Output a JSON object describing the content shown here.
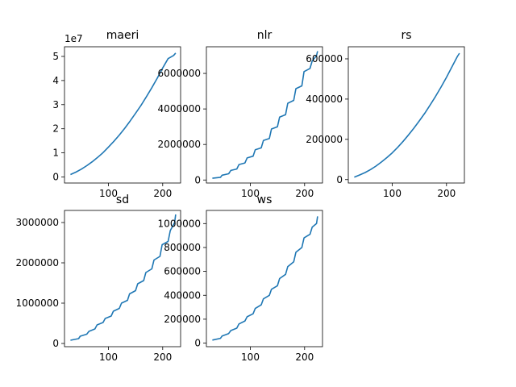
{
  "figure": {
    "background": "#ffffff",
    "line_color": "#1f77b4"
  },
  "chart_data": [
    {
      "name": "maeri",
      "type": "line",
      "title": "maeri",
      "xlim": [
        19,
        233
      ],
      "ylim": [
        -2500000,
        54000000
      ],
      "xticks": [
        100,
        200
      ],
      "xtick_labels": [
        "100",
        "200"
      ],
      "yticks": [
        0,
        10000000,
        20000000,
        30000000,
        40000000,
        50000000
      ],
      "ytick_labels": [
        "0",
        "1",
        "2",
        "3",
        "4",
        "5"
      ],
      "y_offset_label": "1e7",
      "series": [
        {
          "x": [
            30,
            40,
            50,
            60,
            70,
            80,
            90,
            100,
            110,
            120,
            130,
            140,
            150,
            160,
            170,
            180,
            190,
            200,
            210,
            220,
            224
          ],
          "y": [
            1000000,
            2000000,
            3250000,
            4700000,
            6300000,
            8100000,
            10100000,
            12400000,
            14800000,
            17400000,
            20200000,
            23200000,
            26400000,
            29700000,
            33300000,
            37000000,
            41000000,
            45200000,
            49100000,
            50400000,
            51400000
          ]
        }
      ]
    },
    {
      "name": "nlr",
      "type": "line",
      "title": "nlr",
      "xlim": [
        19,
        233
      ],
      "ylim": [
        -170000,
        7500000
      ],
      "xticks": [
        100,
        200
      ],
      "xtick_labels": [
        "100",
        "200"
      ],
      "yticks": [
        0,
        2000000,
        4000000,
        6000000
      ],
      "ytick_labels": [
        "0",
        "2000000",
        "4000000",
        "6000000"
      ],
      "series": [
        {
          "x": [
            30,
            45,
            48,
            60,
            64,
            75,
            79,
            90,
            94,
            105,
            109,
            120,
            124,
            135,
            139,
            150,
            154,
            165,
            169,
            180,
            184,
            195,
            199,
            210,
            214,
            222,
            224
          ],
          "y": [
            100000,
            150000,
            270000,
            350000,
            540000,
            620000,
            870000,
            960000,
            1240000,
            1340000,
            1700000,
            1810000,
            2220000,
            2340000,
            2870000,
            3000000,
            3540000,
            3680000,
            4320000,
            4480000,
            5140000,
            5300000,
            6100000,
            6280000,
            6700000,
            7000000,
            7250000
          ]
        }
      ]
    },
    {
      "name": "rs",
      "type": "line",
      "title": "rs",
      "xlim": [
        19,
        233
      ],
      "ylim": [
        -17000,
        660000
      ],
      "xticks": [
        100,
        200
      ],
      "xtick_labels": [
        "100",
        "200"
      ],
      "yticks": [
        0,
        200000,
        400000,
        600000
      ],
      "ytick_labels": [
        "0",
        "200000",
        "400000",
        "600000"
      ],
      "series": [
        {
          "x": [
            30,
            40,
            50,
            60,
            70,
            80,
            90,
            100,
            110,
            120,
            130,
            140,
            150,
            160,
            170,
            180,
            190,
            200,
            210,
            220,
            224
          ],
          "y": [
            12000,
            23000,
            35000,
            50000,
            67000,
            87000,
            109000,
            133000,
            160000,
            190000,
            222000,
            256000,
            292000,
            330000,
            371000,
            414000,
            460000,
            508000,
            560000,
            612000,
            628000
          ]
        }
      ]
    },
    {
      "name": "sd",
      "type": "line",
      "title": "sd",
      "xlim": [
        19,
        233
      ],
      "ylim": [
        -80000,
        3300000
      ],
      "xticks": [
        100,
        200
      ],
      "xtick_labels": [
        "100",
        "200"
      ],
      "yticks": [
        0,
        1000000,
        2000000,
        3000000
      ],
      "ytick_labels": [
        "0",
        "1000000",
        "2000000",
        "3000000"
      ],
      "series": [
        {
          "x": [
            30,
            45,
            48,
            60,
            64,
            75,
            79,
            90,
            94,
            105,
            109,
            120,
            124,
            135,
            139,
            150,
            154,
            165,
            169,
            180,
            184,
            195,
            199,
            210,
            214,
            222,
            224
          ],
          "y": [
            80000,
            120000,
            180000,
            230000,
            300000,
            360000,
            460000,
            520000,
            620000,
            680000,
            800000,
            870000,
            1000000,
            1070000,
            1230000,
            1310000,
            1480000,
            1560000,
            1760000,
            1850000,
            2070000,
            2160000,
            2450000,
            2530000,
            2800000,
            3000000,
            3200000
          ]
        }
      ]
    },
    {
      "name": "ws",
      "type": "line",
      "title": "ws",
      "xlim": [
        19,
        233
      ],
      "ylim": [
        -30000,
        1110000
      ],
      "xticks": [
        100,
        200
      ],
      "xtick_labels": [
        "100",
        "200"
      ],
      "yticks": [
        0,
        200000,
        400000,
        600000,
        800000,
        1000000
      ],
      "ytick_labels": [
        "0",
        "200000",
        "400000",
        "600000",
        "800000",
        "1000000"
      ],
      "series": [
        {
          "x": [
            30,
            45,
            48,
            60,
            64,
            75,
            79,
            90,
            94,
            105,
            109,
            120,
            124,
            135,
            139,
            150,
            154,
            165,
            169,
            180,
            184,
            195,
            199,
            210,
            214,
            222,
            224
          ],
          "y": [
            25000,
            40000,
            60000,
            80000,
            105000,
            125000,
            160000,
            185000,
            220000,
            245000,
            290000,
            320000,
            370000,
            400000,
            450000,
            480000,
            540000,
            575000,
            640000,
            680000,
            760000,
            800000,
            880000,
            910000,
            970000,
            1000000,
            1060000
          ]
        }
      ]
    }
  ]
}
